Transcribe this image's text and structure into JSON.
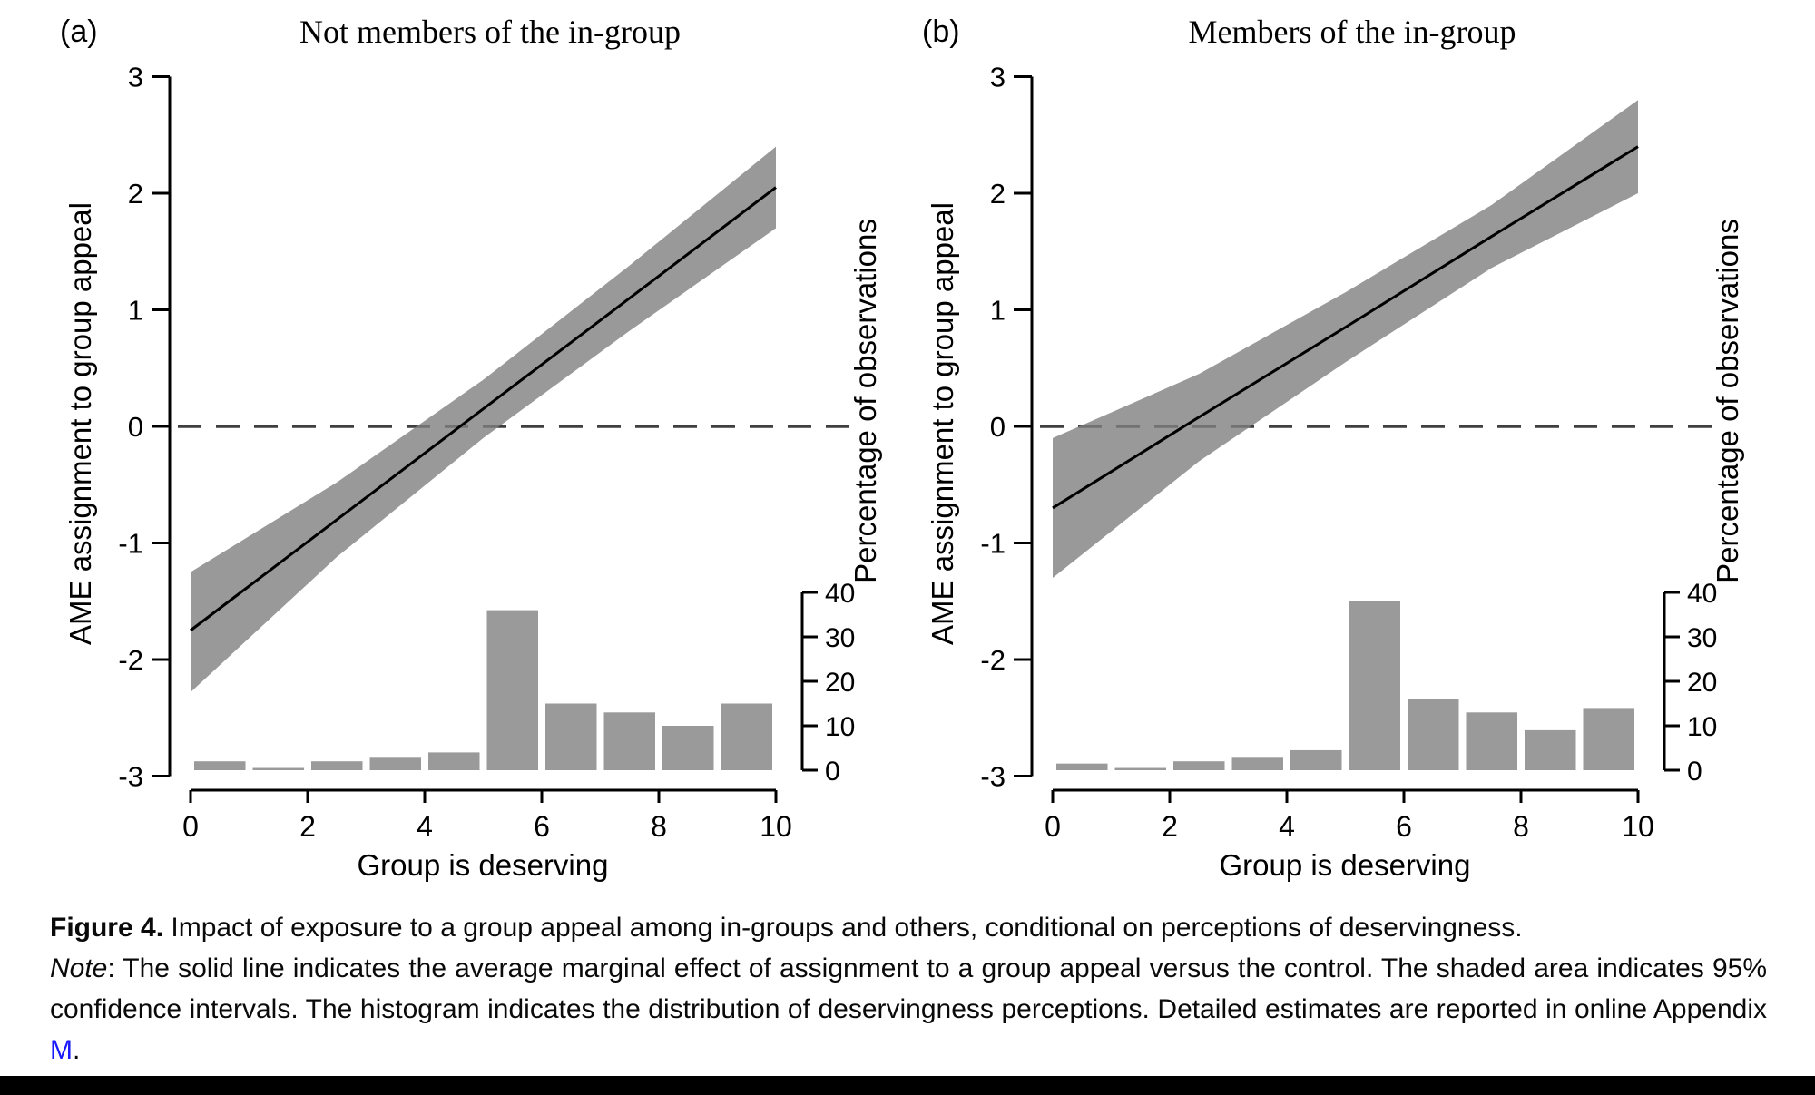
{
  "colors": {
    "band": "rgba(128,128,128,0.8)",
    "band_hex": "#9a9a9a",
    "bars": "#9a9a9a",
    "line": "#000000",
    "zero_dash": "#3f3f3f",
    "axis": "#000000",
    "link": "#1a1aff",
    "bottom_bar": "#000000"
  },
  "chart_data": [
    {
      "type": "line",
      "panel_tag": "(a)",
      "title": "Not members of the in-group",
      "xlabel": "Group is deserving",
      "ylabel": "AME assignment to group appeal",
      "ylabel_right": "Percentage of observations",
      "xlim": [
        0,
        10
      ],
      "ylim": [
        -3,
        3
      ],
      "hist_ylim": [
        0,
        40
      ],
      "x_ticks": [
        0,
        2,
        4,
        6,
        8,
        10
      ],
      "y_ticks": [
        3,
        2,
        1,
        0,
        -1,
        -2,
        -3
      ],
      "hist_ticks": [
        0,
        10,
        20,
        30,
        40
      ],
      "zero_line": 0,
      "series": {
        "x": [
          0,
          2.5,
          5,
          7.5,
          10
        ],
        "ame": [
          -1.75,
          -0.8,
          0.15,
          1.1,
          2.05
        ],
        "ci_upper": [
          -1.25,
          -0.48,
          0.4,
          1.38,
          2.4
        ],
        "ci_lower": [
          -2.28,
          -1.12,
          -0.1,
          0.82,
          1.7
        ]
      },
      "histogram": {
        "bin_edges": [
          0,
          1,
          2,
          3,
          4,
          5,
          6,
          7,
          8,
          9,
          10
        ],
        "percent": [
          2,
          0.5,
          2,
          3,
          4,
          36,
          15,
          13,
          10,
          15
        ]
      }
    },
    {
      "type": "line",
      "panel_tag": "(b)",
      "title": "Members of the in-group",
      "xlabel": "Group is deserving",
      "ylabel": "AME assignment to group appeal",
      "ylabel_right": "Percentage of observations",
      "xlim": [
        0,
        10
      ],
      "ylim": [
        -3,
        3
      ],
      "hist_ylim": [
        0,
        40
      ],
      "x_ticks": [
        0,
        2,
        4,
        6,
        8,
        10
      ],
      "y_ticks": [
        3,
        2,
        1,
        0,
        -1,
        -2,
        -3
      ],
      "hist_ticks": [
        0,
        10,
        20,
        30,
        40
      ],
      "zero_line": 0,
      "series": {
        "x": [
          0,
          2.5,
          5,
          7.5,
          10
        ],
        "ame": [
          -0.7,
          0.08,
          0.85,
          1.63,
          2.4
        ],
        "ci_upper": [
          -0.1,
          0.45,
          1.15,
          1.9,
          2.8
        ],
        "ci_lower": [
          -1.3,
          -0.3,
          0.55,
          1.36,
          2.0
        ]
      },
      "histogram": {
        "bin_edges": [
          0,
          1,
          2,
          3,
          4,
          5,
          6,
          7,
          8,
          9,
          10
        ],
        "percent": [
          1.5,
          0.5,
          2,
          3,
          4.5,
          38,
          16,
          13,
          9,
          14
        ]
      }
    }
  ],
  "caption": {
    "figure_label": "Figure 4.",
    "figure_text": "  Impact of exposure to a group appeal among in-groups and others, conditional on perceptions of deservingness.",
    "note_label": "Note",
    "note_text": ": The solid line indicates the average marginal effect of assignment to a group appeal versus the control. The shaded area indicates 95% confidence intervals. The histogram indicates the distribution of deservingness perceptions. Detailed estimates are reported in online Appendix ",
    "appendix_link": "M",
    "note_end": "."
  }
}
